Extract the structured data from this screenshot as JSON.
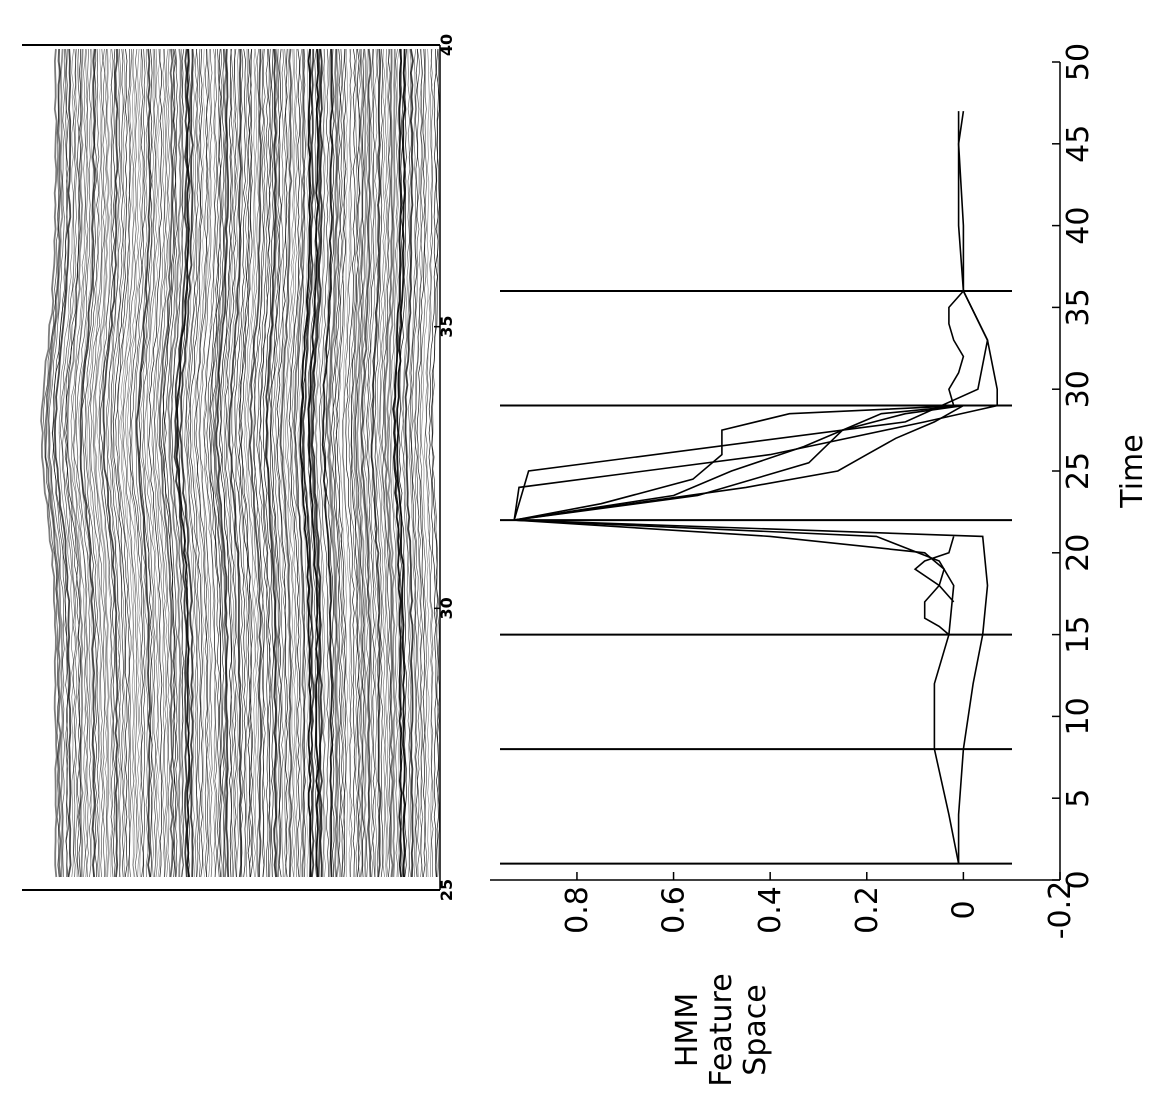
{
  "chart_data": [
    {
      "type": "heatmap",
      "description_role": "seismic-style trace panel (rotated)",
      "axis_ticks": [
        "25",
        "30",
        "35",
        "40"
      ],
      "axis_range": [
        25,
        40
      ]
    },
    {
      "type": "line",
      "xlabel": "Time",
      "ylabel_lines": [
        "HMM",
        "Feature",
        "Space"
      ],
      "x_ticks": [
        "0",
        "5",
        "10",
        "15",
        "20",
        "25",
        "30",
        "35",
        "40",
        "45",
        "50"
      ],
      "y_ticks": [
        "-0.2",
        "0",
        "0.2",
        "0.4",
        "0.6",
        "0.8"
      ],
      "xlim": [
        0,
        50
      ],
      "ylim": [
        -0.2,
        0.98
      ],
      "grid": false,
      "vertical_markers": [
        1,
        8,
        15,
        22,
        29,
        36
      ],
      "series": [
        {
          "x": [
            1,
            4,
            8,
            12,
            15,
            18,
            19.5,
            21,
            22,
            25,
            28,
            30,
            33,
            36,
            40,
            45,
            47
          ],
          "y": [
            0.01,
            0.03,
            0.06,
            0.06,
            0.03,
            0.02,
            0.05,
            0.18,
            0.93,
            0.9,
            0.12,
            -0.03,
            -0.05,
            0.0,
            0.01,
            0.01,
            0.0
          ]
        },
        {
          "x": [
            1,
            4,
            8,
            12,
            15,
            18,
            21,
            22,
            24,
            26,
            28,
            29,
            30,
            33,
            36,
            40,
            45,
            47
          ],
          "y": [
            0.01,
            0.01,
            0.0,
            -0.02,
            -0.04,
            -0.05,
            -0.04,
            0.93,
            0.92,
            0.4,
            0.08,
            -0.07,
            -0.07,
            -0.05,
            0.0,
            0.0,
            0.01,
            0.01
          ]
        },
        {
          "x": [
            15,
            15.5,
            16,
            17,
            18,
            19,
            19.5,
            20,
            21,
            22
          ],
          "y": [
            0.03,
            0.05,
            0.08,
            0.08,
            0.05,
            0.04,
            0.06,
            0.08,
            0.4,
            0.93
          ]
        },
        {
          "x": [
            22,
            23,
            24.5,
            26,
            27.5,
            28.5,
            29
          ],
          "y": [
            0.93,
            0.75,
            0.56,
            0.5,
            0.5,
            0.36,
            0.0
          ]
        },
        {
          "x": [
            22,
            23.5,
            25,
            26.5,
            27.5,
            28.5,
            29
          ],
          "y": [
            0.93,
            0.6,
            0.48,
            0.33,
            0.25,
            0.17,
            0.0
          ]
        },
        {
          "x": [
            22,
            23.5,
            25.5,
            27.5,
            28.5,
            29
          ],
          "y": [
            0.93,
            0.55,
            0.32,
            0.25,
            0.12,
            0.0
          ]
        },
        {
          "x": [
            22,
            24,
            25,
            26,
            27,
            28,
            29
          ],
          "y": [
            0.93,
            0.45,
            0.26,
            0.2,
            0.14,
            0.06,
            0.0
          ]
        },
        {
          "x": [
            17,
            18,
            19,
            19.5,
            20,
            21
          ],
          "y": [
            0.02,
            0.05,
            0.1,
            0.08,
            0.03,
            0.02
          ]
        },
        {
          "x": [
            29,
            30,
            31,
            32,
            33,
            34,
            35,
            36
          ],
          "y": [
            0.02,
            0.03,
            0.01,
            0.0,
            0.02,
            0.03,
            0.03,
            0.0
          ]
        }
      ]
    }
  ]
}
